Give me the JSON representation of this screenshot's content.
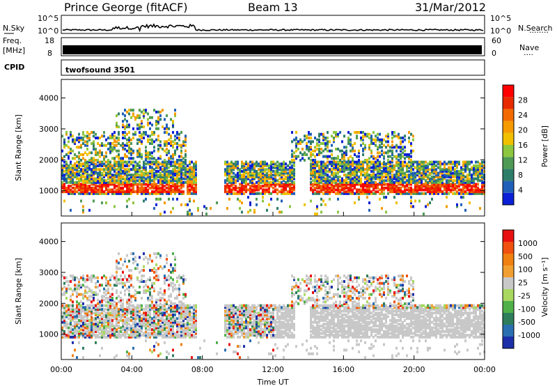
{
  "header": {
    "station": "Prince George (fitACF)",
    "beam": "Beam 13",
    "date": "31/Mar/2012"
  },
  "strip": {
    "nsky_label": "N.Sky",
    "nsearch_label": "N.Search",
    "nsearch_dots": "········",
    "freq_label": "Freq.",
    "freq_unit": "[MHz]",
    "nave_label": "Nave",
    "nave_dots": "····",
    "cpid_label": "CPID",
    "cpid_value": "twofsound 3501",
    "noise_ticks": [
      "10^5",
      "10^0"
    ],
    "freq_ticks": [
      "18",
      "8"
    ],
    "nave_ticks": [
      "60",
      "0"
    ]
  },
  "colors": {
    "power": [
      "#0a1fd6",
      "#1f5fb8",
      "#2e7d6a",
      "#4f9a55",
      "#8dc63f",
      "#f0c000",
      "#f59a00",
      "#f26a00",
      "#e82a00",
      "#ff0000"
    ],
    "velocity": [
      "#1c2fa8",
      "#2a6fb0",
      "#2e7d5b",
      "#4fb04a",
      "#a8d860",
      "#c8c8c8",
      "#f0a030",
      "#f08010",
      "#f05010",
      "#e81010"
    ]
  },
  "chart_data": [
    {
      "type": "heatmap",
      "panel": "power",
      "ylabel": "Slant Range [km]",
      "xlabel": "",
      "ylim": [
        180,
        4600
      ],
      "xlim": [
        0,
        24
      ],
      "y_ticks": [
        1000,
        2000,
        3000,
        4000
      ],
      "colorbar_label": "Power [dB]",
      "colorbar_ticks": [
        "4",
        "8",
        "12",
        "16",
        "20",
        "24",
        "28"
      ]
    },
    {
      "type": "heatmap",
      "panel": "velocity",
      "ylabel": "Slant Range [km]",
      "xlabel": "Time UT",
      "ylim": [
        180,
        4600
      ],
      "xlim": [
        0,
        24
      ],
      "y_ticks": [
        1000,
        2000,
        3000,
        4000
      ],
      "x_ticks": [
        "00:00",
        "04:00",
        "08:00",
        "12:00",
        "16:00",
        "20:00",
        "00:00"
      ],
      "colorbar_label": "Velocity [m s⁻¹]",
      "colorbar_ticks": [
        "1000",
        "500",
        "100",
        "25",
        "-25",
        "-100",
        "-500",
        "-1000"
      ]
    }
  ]
}
